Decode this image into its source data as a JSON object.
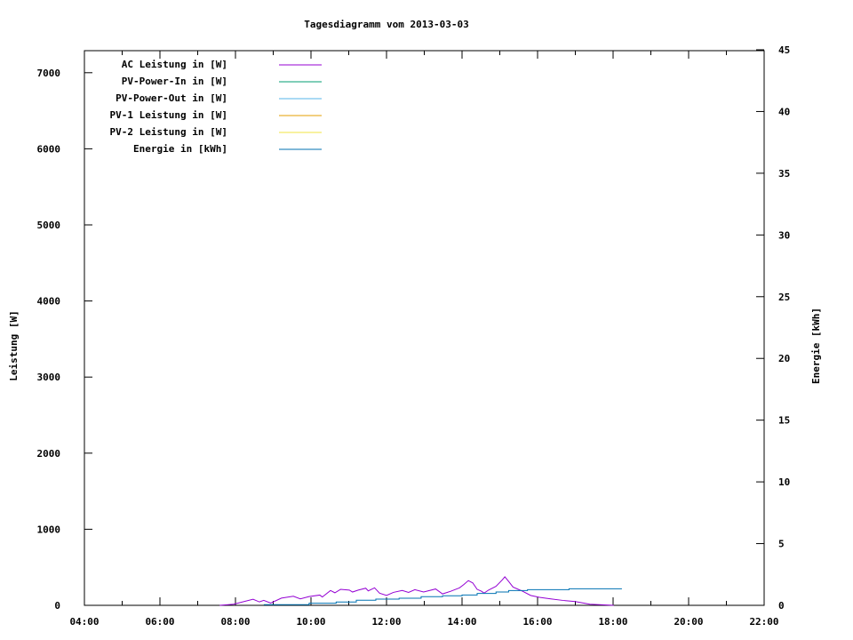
{
  "chart_data": {
    "type": "line",
    "title": "Tagesdiagramm vom 2013-03-03",
    "ylabel": "Leistung [W]",
    "y2label": "Energie [kWh]",
    "xlim": [
      "04:00",
      "22:00"
    ],
    "ylim": [
      0,
      7300
    ],
    "y2lim": [
      0,
      45
    ],
    "xticks": [
      "04:00",
      "06:00",
      "08:00",
      "10:00",
      "12:00",
      "14:00",
      "16:00",
      "18:00",
      "20:00",
      "22:00"
    ],
    "yticks": [
      "0",
      "1000",
      "2000",
      "3000",
      "4000",
      "5000",
      "6000",
      "7000"
    ],
    "y2ticks": [
      "0",
      "5",
      "10",
      "15",
      "20",
      "25",
      "30",
      "35",
      "40",
      "45"
    ],
    "grid": false,
    "legend_position": "top-left",
    "series": [
      {
        "name": "AC Leistung in [W]",
        "color": "#9400d3",
        "axis": "y",
        "style": "line",
        "x": [
          "07:35",
          "07:57",
          "08:28",
          "08:38",
          "08:45",
          "08:56",
          "09:13",
          "09:32",
          "09:43",
          "09:57",
          "10:14",
          "10:18",
          "10:31",
          "10:38",
          "10:47",
          "11:01",
          "11:06",
          "11:15",
          "11:27",
          "11:31",
          "11:41",
          "11:49",
          "12:00",
          "12:11",
          "12:25",
          "12:35",
          "12:45",
          "12:59",
          "13:18",
          "13:29",
          "13:42",
          "13:56",
          "14:03",
          "14:10",
          "14:17",
          "14:24",
          "14:31",
          "14:35",
          "14:42",
          "14:54",
          "15:04",
          "15:08",
          "15:14",
          "15:21",
          "15:35",
          "15:49",
          "16:03",
          "16:21",
          "16:40",
          "17:00",
          "17:23",
          "18:01"
        ],
        "y": [
          0,
          15,
          80,
          45,
          65,
          30,
          95,
          120,
          85,
          115,
          135,
          110,
          195,
          165,
          210,
          200,
          175,
          200,
          225,
          190,
          230,
          160,
          130,
          170,
          195,
          170,
          205,
          175,
          215,
          150,
          185,
          230,
          275,
          325,
          295,
          210,
          185,
          160,
          200,
          250,
          335,
          375,
          315,
          240,
          190,
          130,
          105,
          85,
          65,
          50,
          15,
          0
        ]
      },
      {
        "name": "PV-Power-In in [W]",
        "color": "#009e73",
        "axis": "y",
        "x": [],
        "y": []
      },
      {
        "name": "PV-Power-Out in [W]",
        "color": "#56b4e9",
        "axis": "y",
        "x": [],
        "y": []
      },
      {
        "name": "PV-1 Leistung in [W]",
        "color": "#e69f00",
        "axis": "y",
        "x": [],
        "y": []
      },
      {
        "name": "PV-2 Leistung in [W]",
        "color": "#f0e442",
        "axis": "y",
        "x": [],
        "y": []
      },
      {
        "name": "Energie in [kWh]",
        "color": "#0072b2",
        "axis": "y2",
        "style": "steps",
        "x": [
          "08:45",
          "09:57",
          "10:40",
          "11:12",
          "11:43",
          "12:20",
          "12:55",
          "13:29",
          "14:00",
          "14:24",
          "14:54",
          "15:14",
          "15:44",
          "16:50",
          "18:14"
        ],
        "y": [
          0.05,
          0.17,
          0.27,
          0.41,
          0.5,
          0.58,
          0.7,
          0.77,
          0.84,
          0.96,
          1.08,
          1.2,
          1.27,
          1.34,
          1.34
        ]
      }
    ]
  }
}
